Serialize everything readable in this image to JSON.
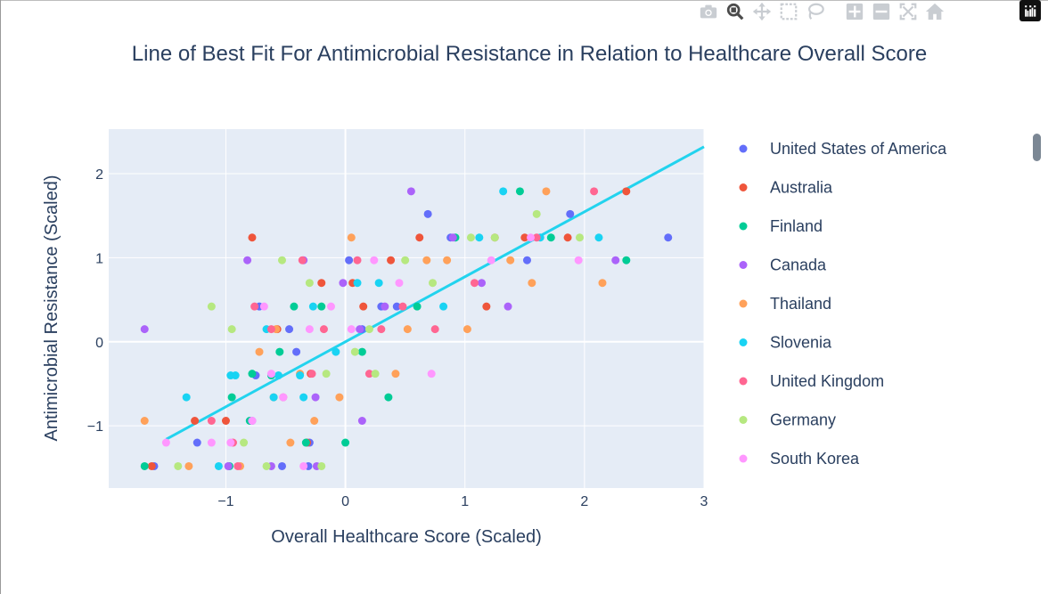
{
  "toolbar": {
    "buttons": [
      {
        "icon": "camera-icon",
        "label": "Download plot as a png"
      },
      {
        "icon": "zoom-icon",
        "label": "Zoom"
      },
      {
        "icon": "pan-icon",
        "label": "Pan"
      },
      {
        "icon": "box-select-icon",
        "label": "Box Select"
      },
      {
        "icon": "lasso-select-icon",
        "label": "Lasso Select"
      },
      {
        "icon": "zoom-in-icon",
        "label": "Zoom in"
      },
      {
        "icon": "zoom-out-icon",
        "label": "Zoom out"
      },
      {
        "icon": "autoscale-icon",
        "label": "Autoscale"
      },
      {
        "icon": "reset-axes-icon",
        "label": "Reset axes"
      }
    ],
    "logo_icon": "plotly-logo-icon"
  },
  "colors": {
    "plot_bg": "#e5ecf6",
    "grid": "#ffffff",
    "fit_line": "#22d3ee",
    "text": "#2a3f5f"
  },
  "chart_data": {
    "type": "scatter",
    "title": "Line of Best Fit For Antimicrobial Resistance in Relation to Healthcare Overall Score",
    "xlabel": "Overall Healthcare Score (Scaled)",
    "ylabel": "Antimicrobial Resistance (Scaled)",
    "xlim": [
      -1.98,
      3.0
    ],
    "ylim": [
      -1.74,
      2.53
    ],
    "x_ticks": [
      -1,
      0,
      1,
      2,
      3
    ],
    "x_tick_labels": [
      "−1",
      "0",
      "1",
      "2",
      "3"
    ],
    "y_ticks": [
      -1,
      0,
      1,
      2
    ],
    "y_tick_labels": [
      "−1",
      "0",
      "1",
      "2"
    ],
    "grid": true,
    "legend_position": "right",
    "fit_line": {
      "x": [
        -1.5,
        3.0
      ],
      "y": [
        -1.16,
        2.32
      ]
    },
    "series": [
      {
        "name": "United States of America",
        "color": "#636efa",
        "points": [
          [
            -1.6,
            -1.48
          ],
          [
            -1.24,
            -1.2
          ],
          [
            -0.72,
            0.42
          ],
          [
            -0.75,
            -0.4
          ],
          [
            -0.41,
            -0.12
          ],
          [
            -0.53,
            -1.48
          ],
          [
            -0.31,
            -1.48
          ],
          [
            0.03,
            0.97
          ],
          [
            0.14,
            0.15
          ],
          [
            0.43,
            0.42
          ],
          [
            0.69,
            1.52
          ],
          [
            0.88,
            1.24
          ],
          [
            1.52,
            0.97
          ],
          [
            1.88,
            1.52
          ],
          [
            2.7,
            1.24
          ],
          [
            -0.3,
            -1.2
          ],
          [
            -0.47,
            0.15
          ],
          [
            0.3,
            0.42
          ]
        ]
      },
      {
        "name": "Australia",
        "color": "#ef553b",
        "points": [
          [
            -1.62,
            -1.48
          ],
          [
            -1.26,
            -0.94
          ],
          [
            -0.78,
            1.24
          ],
          [
            -1.0,
            -0.94
          ],
          [
            -0.57,
            0.15
          ],
          [
            -0.2,
            0.7
          ],
          [
            0.15,
            0.42
          ],
          [
            0.38,
            0.97
          ],
          [
            0.62,
            1.24
          ],
          [
            1.18,
            0.42
          ],
          [
            1.25,
            1.24
          ],
          [
            1.5,
            1.24
          ],
          [
            1.86,
            1.24
          ],
          [
            2.35,
            1.79
          ],
          [
            -0.29,
            -0.38
          ],
          [
            -0.32,
            -1.2
          ],
          [
            0.06,
            0.7
          ]
        ]
      },
      {
        "name": "Finland",
        "color": "#00cc96",
        "points": [
          [
            -1.68,
            -1.48
          ],
          [
            -0.97,
            -1.48
          ],
          [
            -0.95,
            -0.66
          ],
          [
            -0.8,
            -0.94
          ],
          [
            -0.62,
            -0.4
          ],
          [
            -0.55,
            -0.12
          ],
          [
            -0.43,
            0.42
          ],
          [
            -0.33,
            -1.2
          ],
          [
            -0.2,
            0.42
          ],
          [
            0.0,
            -1.2
          ],
          [
            0.14,
            -0.12
          ],
          [
            0.36,
            -0.66
          ],
          [
            0.6,
            0.42
          ],
          [
            0.92,
            1.24
          ],
          [
            1.46,
            1.79
          ],
          [
            1.72,
            1.24
          ],
          [
            2.35,
            0.97
          ],
          [
            -0.78,
            -0.38
          ]
        ]
      },
      {
        "name": "Canada",
        "color": "#ab63fa",
        "points": [
          [
            -1.68,
            0.15
          ],
          [
            -0.82,
            0.97
          ],
          [
            -0.62,
            -1.48
          ],
          [
            -0.35,
            0.97
          ],
          [
            -0.24,
            -1.48
          ],
          [
            -0.02,
            0.7
          ],
          [
            0.14,
            -0.94
          ],
          [
            0.33,
            0.42
          ],
          [
            0.55,
            1.79
          ],
          [
            0.9,
            1.24
          ],
          [
            1.14,
            0.7
          ],
          [
            1.36,
            0.42
          ],
          [
            2.26,
            0.97
          ],
          [
            -0.78,
            -0.94
          ],
          [
            -0.25,
            -0.66
          ],
          [
            -0.98,
            -1.48
          ],
          [
            0.12,
            0.15
          ]
        ]
      },
      {
        "name": "Thailand",
        "color": "#ffa15a",
        "points": [
          [
            -1.68,
            -0.94
          ],
          [
            -1.31,
            -1.48
          ],
          [
            -0.88,
            -1.48
          ],
          [
            -0.72,
            -0.12
          ],
          [
            -0.6,
            -0.66
          ],
          [
            -0.58,
            0.15
          ],
          [
            -0.38,
            -0.38
          ],
          [
            -0.26,
            -0.94
          ],
          [
            -0.05,
            -0.66
          ],
          [
            0.05,
            1.24
          ],
          [
            0.42,
            -0.38
          ],
          [
            0.52,
            0.15
          ],
          [
            0.68,
            0.97
          ],
          [
            0.85,
            0.97
          ],
          [
            1.02,
            0.15
          ],
          [
            1.38,
            0.97
          ],
          [
            1.68,
            1.79
          ],
          [
            2.15,
            0.7
          ],
          [
            -0.46,
            -1.2
          ],
          [
            1.56,
            0.7
          ]
        ]
      },
      {
        "name": "Slovenia",
        "color": "#19d3f3",
        "points": [
          [
            -1.33,
            -0.66
          ],
          [
            -0.96,
            -0.4
          ],
          [
            -0.92,
            -0.4
          ],
          [
            -1.06,
            -1.48
          ],
          [
            -0.66,
            0.15
          ],
          [
            -0.6,
            -0.66
          ],
          [
            -0.56,
            -0.4
          ],
          [
            -0.35,
            -0.66
          ],
          [
            -0.27,
            0.42
          ],
          [
            -0.08,
            -0.12
          ],
          [
            0.1,
            0.7
          ],
          [
            0.28,
            0.7
          ],
          [
            0.82,
            0.42
          ],
          [
            1.12,
            1.24
          ],
          [
            1.32,
            1.79
          ],
          [
            1.63,
            1.24
          ],
          [
            2.12,
            1.24
          ],
          [
            -0.38,
            -0.4
          ]
        ]
      },
      {
        "name": "United Kingdom",
        "color": "#ff6692",
        "points": [
          [
            -1.12,
            -0.94
          ],
          [
            -0.9,
            -1.48
          ],
          [
            -0.76,
            0.42
          ],
          [
            -0.62,
            0.15
          ],
          [
            -0.36,
            0.97
          ],
          [
            -0.28,
            -0.38
          ],
          [
            -0.18,
            0.15
          ],
          [
            0.1,
            0.97
          ],
          [
            0.3,
            0.15
          ],
          [
            0.48,
            0.42
          ],
          [
            0.75,
            0.15
          ],
          [
            1.08,
            0.7
          ],
          [
            1.6,
            1.24
          ],
          [
            2.08,
            1.79
          ],
          [
            -0.52,
            -0.66
          ],
          [
            -0.94,
            -1.2
          ],
          [
            0.2,
            -0.38
          ]
        ]
      },
      {
        "name": "Germany",
        "color": "#b6e880",
        "points": [
          [
            -1.4,
            -1.48
          ],
          [
            -1.12,
            0.42
          ],
          [
            -0.95,
            0.15
          ],
          [
            -0.85,
            -1.2
          ],
          [
            -0.66,
            -1.48
          ],
          [
            -0.53,
            0.97
          ],
          [
            -0.3,
            0.7
          ],
          [
            -0.16,
            -0.38
          ],
          [
            0.08,
            -0.12
          ],
          [
            0.25,
            -0.38
          ],
          [
            0.5,
            0.97
          ],
          [
            0.73,
            0.7
          ],
          [
            1.05,
            1.24
          ],
          [
            1.25,
            1.24
          ],
          [
            1.6,
            1.52
          ],
          [
            1.96,
            1.24
          ],
          [
            -0.2,
            -1.48
          ],
          [
            0.2,
            0.15
          ]
        ]
      },
      {
        "name": "South Korea",
        "color": "#ff97ff",
        "points": [
          [
            -1.5,
            -1.2
          ],
          [
            -1.12,
            -1.2
          ],
          [
            -0.96,
            -1.2
          ],
          [
            -0.78,
            -0.94
          ],
          [
            -0.68,
            0.42
          ],
          [
            -0.52,
            -0.66
          ],
          [
            -0.35,
            -1.48
          ],
          [
            -0.3,
            0.15
          ],
          [
            0.05,
            0.15
          ],
          [
            0.24,
            0.97
          ],
          [
            0.45,
            0.7
          ],
          [
            0.72,
            -0.38
          ],
          [
            1.22,
            0.97
          ],
          [
            1.55,
            1.24
          ],
          [
            1.95,
            0.97
          ],
          [
            -0.62,
            -0.38
          ],
          [
            -0.12,
            0.42
          ]
        ]
      }
    ]
  }
}
